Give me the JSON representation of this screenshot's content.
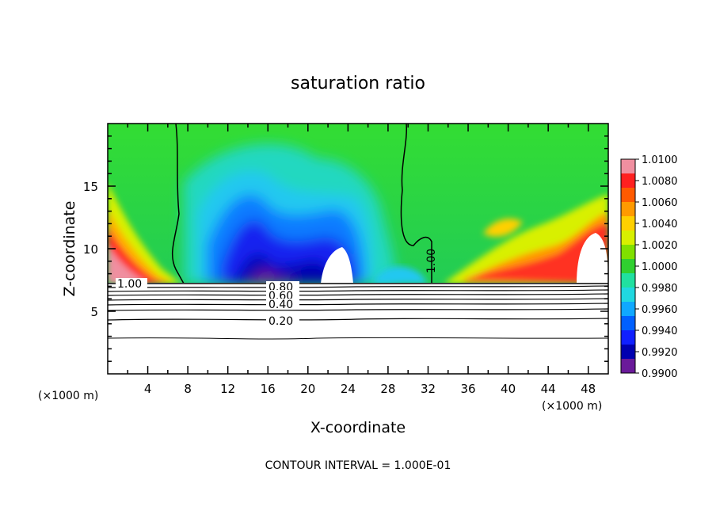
{
  "chart_data": {
    "type": "heatmap",
    "title": "saturation ratio",
    "xlabel": "X-coordinate",
    "ylabel": "Z-coordinate",
    "x_unit_left": "(×1000 m)",
    "x_unit_right": "(×1000 m)",
    "footer": "CONTOUR INTERVAL = 1.000E-01",
    "xlim": [
      0,
      50
    ],
    "ylim": [
      0,
      20
    ],
    "x_ticks": [
      "4",
      "8",
      "12",
      "16",
      "20",
      "24",
      "28",
      "32",
      "36",
      "40",
      "44",
      "48"
    ],
    "y_ticks": [
      "5",
      "10",
      "15"
    ],
    "colorbar": {
      "min": 0.99,
      "max": 1.01,
      "labels": [
        "1.0100",
        "1.0080",
        "1.0060",
        "1.0040",
        "1.0020",
        "1.0000",
        "0.9980",
        "0.9960",
        "0.9940",
        "0.9920",
        "0.9900"
      ],
      "colors": [
        "#f08fa0",
        "#ff2020",
        "#ff5a00",
        "#ff9a00",
        "#ffd000",
        "#d8f000",
        "#80e000",
        "#30d030",
        "#20e0a0",
        "#20d8e0",
        "#10a8ff",
        "#0060ff",
        "#1020ff",
        "#0000b0",
        "#6a1a9a"
      ]
    },
    "contour_labels": [
      "1.00",
      "0.80",
      "0.60",
      "0.40",
      "0.20",
      "1.00"
    ],
    "cloud_base_z": 7.2
  }
}
